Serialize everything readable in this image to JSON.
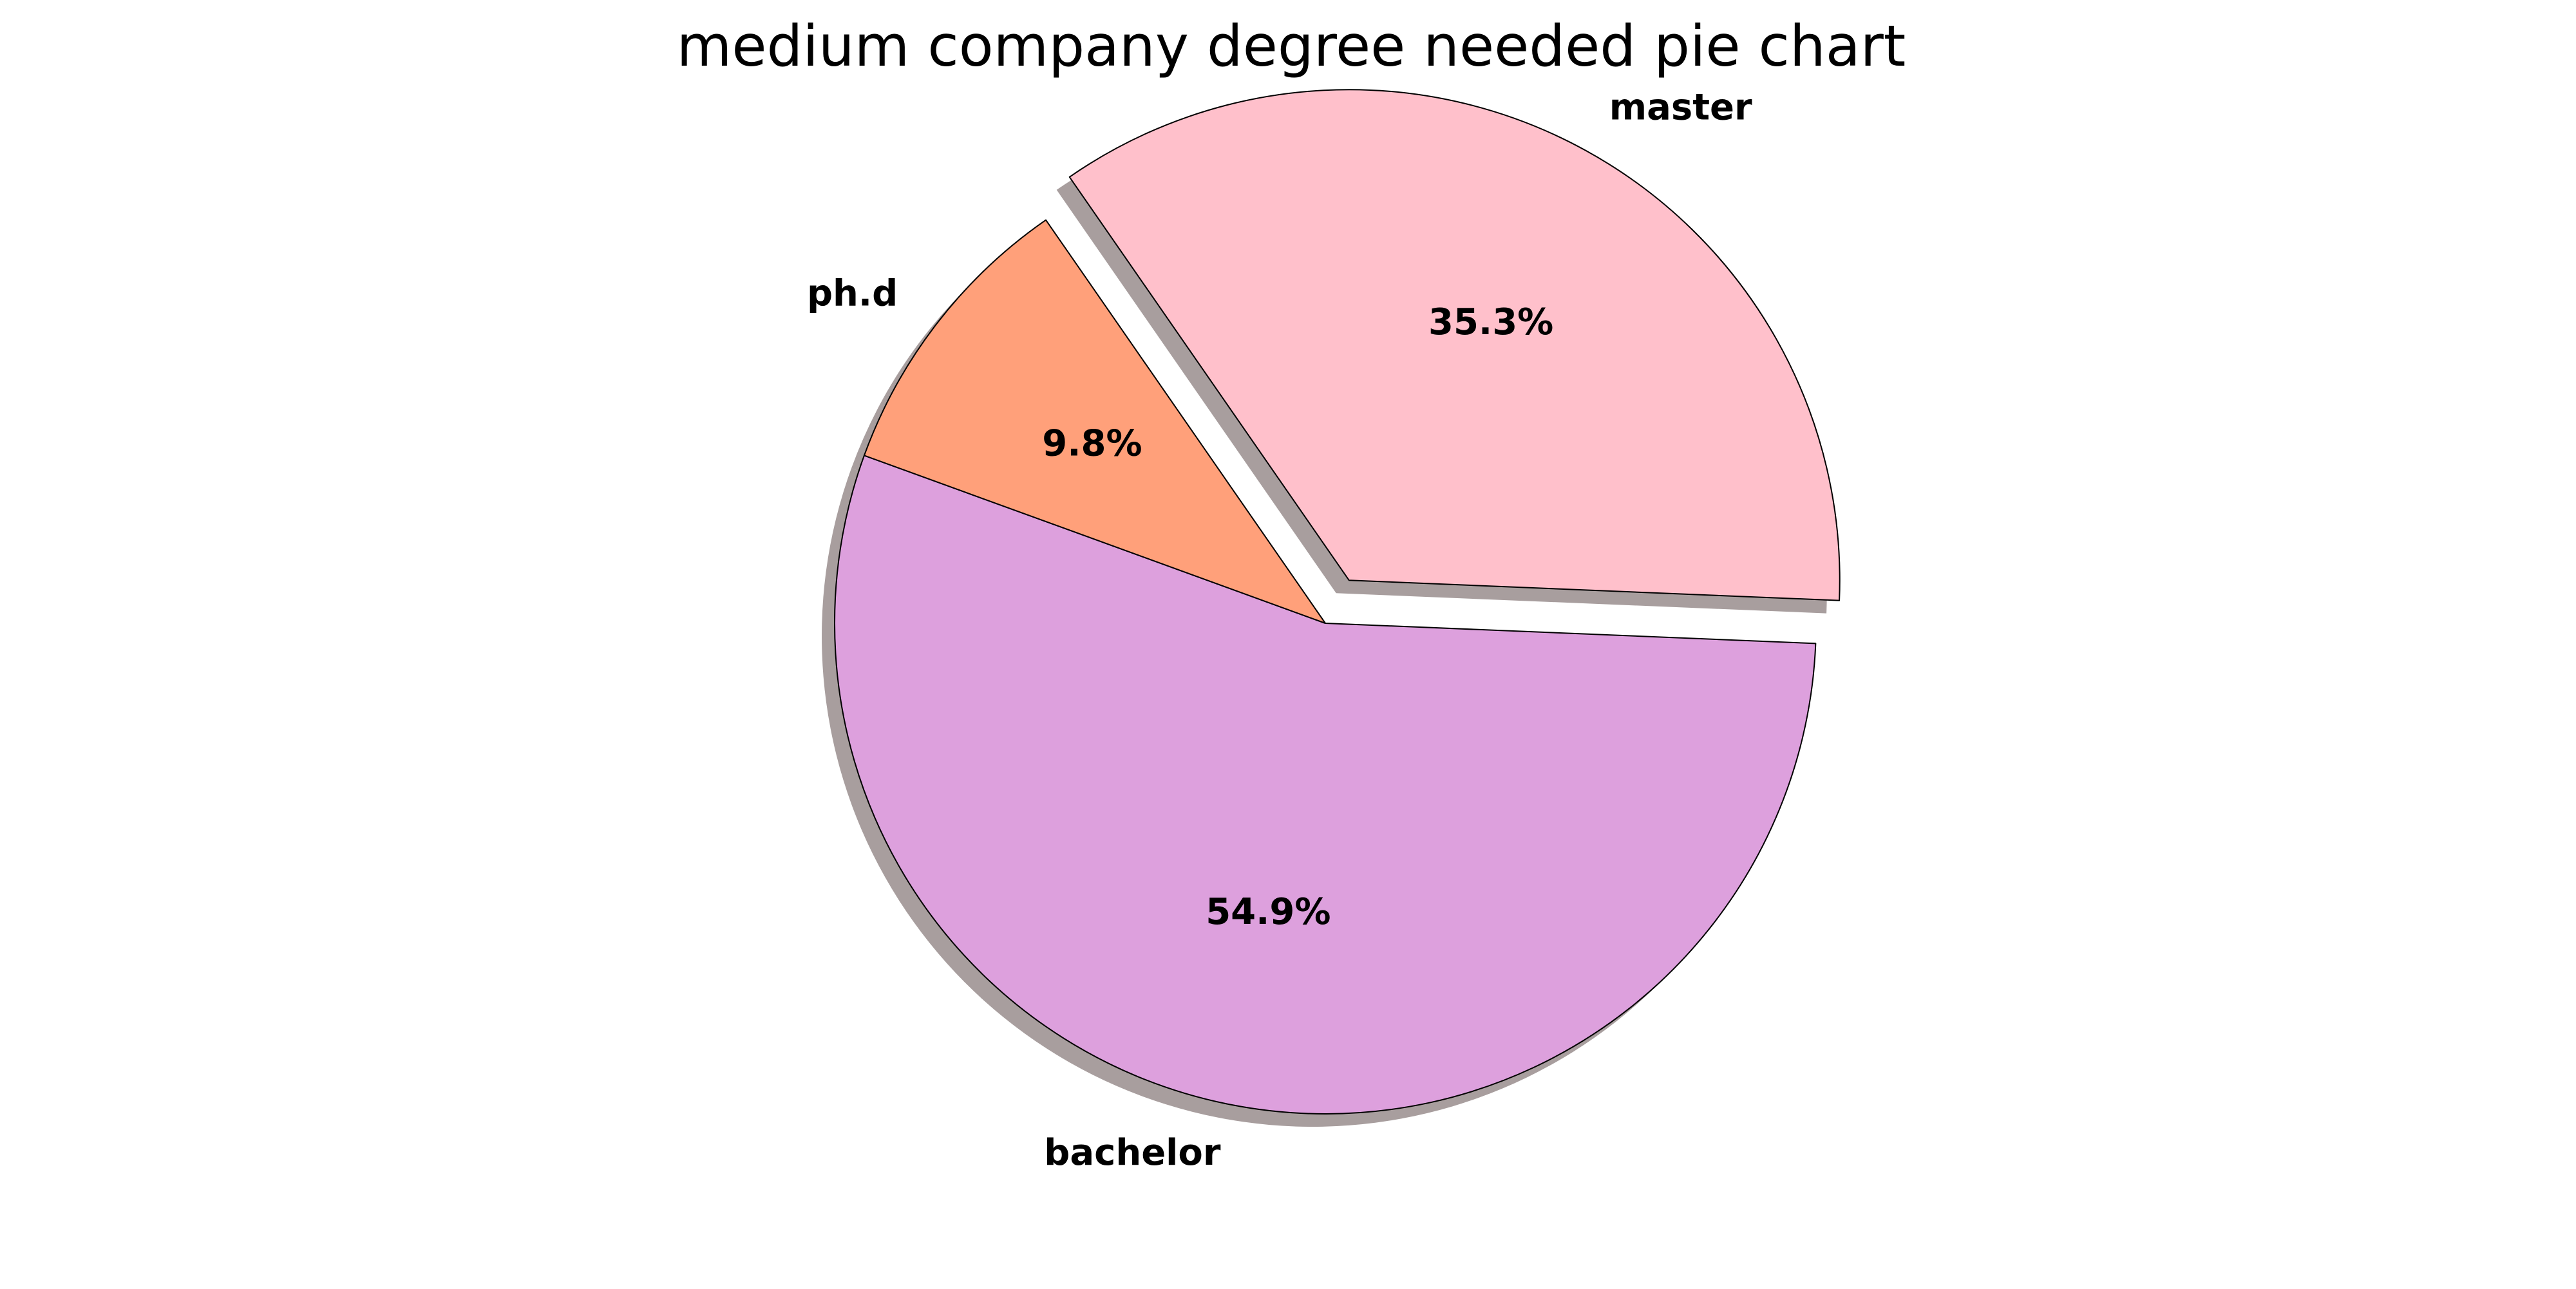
{
  "chart_data": {
    "type": "pie",
    "title": "medium company degree needed pie chart",
    "categories": [
      "bachelor",
      "master",
      "ph.d"
    ],
    "values": [
      54.9,
      35.3,
      9.8
    ],
    "percent_labels": [
      "54.9%",
      "35.3%",
      "9.8%"
    ],
    "colors": [
      "#dda0dd",
      "#ffc0cb",
      "#ffa07a"
    ],
    "edge_color": "#000000",
    "shadow_color": "#a89e9e",
    "exploded": [
      false,
      true,
      false
    ],
    "start_angle_deg": 160,
    "direction": "counterclockwise",
    "legend": "none"
  }
}
